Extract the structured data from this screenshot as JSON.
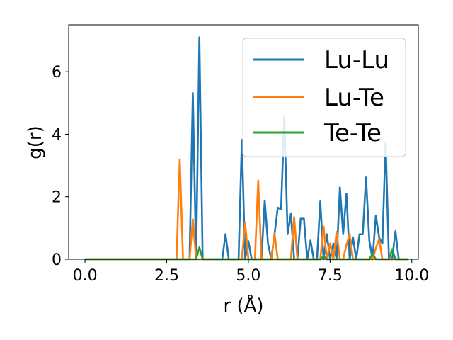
{
  "chart_data": {
    "type": "line",
    "title": "",
    "xlabel": "r (Å)",
    "ylabel": "g(r)",
    "xlim": [
      -0.5,
      10.2
    ],
    "ylim": [
      0,
      7.5
    ],
    "xticks": [
      "0.0",
      "2.5",
      "5.0",
      "7.5",
      "10.0"
    ],
    "yticks": [
      "0",
      "2",
      "4",
      "6"
    ],
    "legend_position": "top-right",
    "grid": false,
    "series": [
      {
        "name": "Lu-Lu",
        "color": "#1f77b4",
        "x": [
          0,
          0.1,
          0.2,
          0.3,
          0.4,
          0.5,
          0.6,
          0.7,
          0.8,
          0.9,
          1.0,
          1.1,
          1.2,
          1.3,
          1.4,
          1.5,
          1.6,
          1.7,
          1.8,
          1.9,
          2.0,
          2.1,
          2.2,
          2.3,
          2.4,
          2.5,
          2.6,
          2.7,
          2.8,
          2.9,
          3.0,
          3.1,
          3.2,
          3.3,
          3.4,
          3.5,
          3.6,
          3.7,
          3.8,
          3.9,
          4.0,
          4.1,
          4.2,
          4.3,
          4.4,
          4.5,
          4.6,
          4.7,
          4.8,
          4.9,
          5.0,
          5.1,
          5.2,
          5.3,
          5.4,
          5.5,
          5.6,
          5.7,
          5.8,
          5.9,
          6.0,
          6.1,
          6.2,
          6.3,
          6.4,
          6.5,
          6.6,
          6.7,
          6.8,
          6.9,
          7.0,
          7.1,
          7.2,
          7.3,
          7.4,
          7.5,
          7.6,
          7.7,
          7.8,
          7.9,
          8.0,
          8.1,
          8.2,
          8.3,
          8.4,
          8.5,
          8.6,
          8.7,
          8.8,
          8.9,
          9.0,
          9.1,
          9.2,
          9.3,
          9.4,
          9.5,
          9.6,
          9.7,
          9.8,
          9.9
        ],
        "y": [
          0,
          0,
          0,
          0,
          0,
          0,
          0,
          0,
          0,
          0,
          0,
          0,
          0,
          0,
          0,
          0,
          0,
          0,
          0,
          0,
          0,
          0,
          0,
          0,
          0,
          0,
          0,
          0,
          0,
          0,
          0,
          0,
          0,
          5.32,
          0,
          7.1,
          0,
          0,
          0,
          0,
          0,
          0,
          0,
          0.8,
          0,
          0,
          0,
          0,
          3.82,
          0,
          0.58,
          0,
          0,
          0,
          0,
          1.88,
          0.5,
          0,
          0.8,
          1.65,
          1.6,
          4.58,
          0.8,
          1.45,
          0,
          0,
          1.3,
          1.3,
          0,
          0.6,
          0,
          0,
          1.85,
          0,
          0.8,
          0,
          0.5,
          0,
          2.3,
          0.8,
          2.1,
          0,
          0.7,
          0,
          0.8,
          0.8,
          2.62,
          0.6,
          0,
          1.4,
          0.7,
          0.5,
          3.75,
          0,
          0,
          0.9,
          0,
          0,
          0,
          0
        ]
      },
      {
        "name": "Lu-Te",
        "color": "#ff7f0e",
        "x": [
          0,
          0.1,
          0.2,
          0.3,
          0.4,
          0.5,
          0.6,
          0.7,
          0.8,
          0.9,
          1.0,
          1.1,
          1.2,
          1.3,
          1.4,
          1.5,
          1.6,
          1.7,
          1.8,
          1.9,
          2.0,
          2.1,
          2.2,
          2.3,
          2.4,
          2.5,
          2.6,
          2.7,
          2.8,
          2.9,
          3.0,
          3.1,
          3.2,
          3.3,
          3.4,
          3.5,
          3.6,
          3.7,
          3.8,
          3.9,
          4.0,
          4.1,
          4.2,
          4.3,
          4.4,
          4.5,
          4.6,
          4.7,
          4.8,
          4.9,
          5.0,
          5.1,
          5.2,
          5.3,
          5.4,
          5.5,
          5.6,
          5.7,
          5.8,
          5.9,
          6.0,
          6.1,
          6.2,
          6.3,
          6.4,
          6.5,
          6.6,
          6.7,
          6.8,
          6.9,
          7.0,
          7.1,
          7.2,
          7.3,
          7.4,
          7.5,
          7.6,
          7.7,
          7.8,
          7.9,
          8.0,
          8.1,
          8.2,
          8.3,
          8.4,
          8.5,
          8.6,
          8.7,
          8.8,
          8.9,
          9.0,
          9.1,
          9.2,
          9.3,
          9.4,
          9.5,
          9.6,
          9.7,
          9.8,
          9.9
        ],
        "y": [
          0,
          0,
          0,
          0,
          0,
          0,
          0,
          0,
          0,
          0,
          0,
          0,
          0,
          0,
          0,
          0,
          0,
          0,
          0,
          0,
          0,
          0,
          0,
          0,
          0,
          0,
          0,
          0,
          0,
          3.2,
          0,
          0,
          0,
          1.28,
          0,
          0,
          0,
          0,
          0,
          0,
          0,
          0,
          0,
          0,
          0,
          0,
          0,
          0,
          0,
          1.18,
          0,
          0,
          0,
          2.52,
          0,
          0,
          0,
          0,
          0.82,
          0,
          0,
          0,
          0,
          0,
          1.35,
          0,
          0,
          0,
          0,
          0,
          0,
          0,
          0,
          1.05,
          0,
          0.5,
          0,
          0.88,
          0,
          0,
          0.45,
          0.8,
          0,
          0,
          0,
          0,
          0,
          0,
          0,
          0.35,
          0.65,
          0,
          0,
          0,
          0,
          0,
          0,
          0,
          0,
          0
        ]
      },
      {
        "name": "Te-Te",
        "color": "#2ca02c",
        "x": [
          0,
          0.1,
          0.2,
          0.3,
          0.4,
          0.5,
          0.6,
          0.7,
          0.8,
          0.9,
          1.0,
          1.1,
          1.2,
          1.3,
          1.4,
          1.5,
          1.6,
          1.7,
          1.8,
          1.9,
          2.0,
          2.1,
          2.2,
          2.3,
          2.4,
          2.5,
          2.6,
          2.7,
          2.8,
          2.9,
          3.0,
          3.1,
          3.2,
          3.3,
          3.4,
          3.5,
          3.6,
          3.7,
          3.8,
          3.9,
          4.0,
          4.1,
          4.2,
          4.3,
          4.4,
          4.5,
          4.6,
          4.7,
          4.8,
          4.9,
          5.0,
          5.1,
          5.2,
          5.3,
          5.4,
          5.5,
          5.6,
          5.7,
          5.8,
          5.9,
          6.0,
          6.1,
          6.2,
          6.3,
          6.4,
          6.5,
          6.6,
          6.7,
          6.8,
          6.9,
          7.0,
          7.1,
          7.2,
          7.3,
          7.4,
          7.5,
          7.6,
          7.7,
          7.8,
          7.9,
          8.0,
          8.1,
          8.2,
          8.3,
          8.4,
          8.5,
          8.6,
          8.7,
          8.8,
          8.9,
          9.0,
          9.1,
          9.2,
          9.3,
          9.4,
          9.5,
          9.6,
          9.7,
          9.8,
          9.9
        ],
        "y": [
          0,
          0,
          0,
          0,
          0,
          0,
          0,
          0,
          0,
          0,
          0,
          0,
          0,
          0,
          0,
          0,
          0,
          0,
          0,
          0,
          0,
          0,
          0,
          0,
          0,
          0,
          0,
          0,
          0,
          0,
          0,
          0,
          0,
          0,
          0,
          0.38,
          0,
          0,
          0,
          0,
          0,
          0,
          0,
          0,
          0,
          0,
          0,
          0,
          0,
          0,
          0,
          0,
          0,
          0,
          0,
          0,
          0,
          0,
          0,
          0,
          0,
          0,
          0,
          0,
          0,
          0,
          0,
          0,
          0,
          0,
          0,
          0,
          0,
          0.1,
          0,
          0,
          0,
          0,
          0,
          0,
          0,
          0,
          0,
          0,
          0,
          0,
          0,
          0,
          0.18,
          0,
          0,
          0,
          0,
          0,
          0.32,
          0,
          0,
          0,
          0,
          0
        ]
      }
    ]
  }
}
